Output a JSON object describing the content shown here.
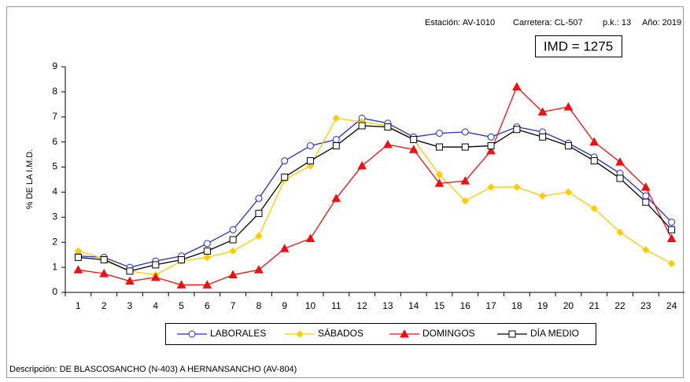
{
  "chart_data": {
    "type": "line",
    "station": "Estación: AV-1010",
    "road": "Carretera: CL-507",
    "pk": "p.k.: 13",
    "year": "Año: 2019",
    "imd": "IMD = 1275",
    "y_label": "% DE LA I.M.D.",
    "description": "Descripción: DE BLASCOSANCHO (N-403) A HERNANSANCHO (AV-804)",
    "categories": [
      1,
      2,
      3,
      4,
      5,
      6,
      7,
      8,
      9,
      10,
      11,
      12,
      13,
      14,
      15,
      16,
      17,
      18,
      19,
      20,
      21,
      22,
      23,
      24
    ],
    "ylim": [
      0,
      9
    ],
    "yticks": [
      0,
      1,
      2,
      3,
      4,
      5,
      6,
      7,
      8,
      9
    ],
    "series": [
      {
        "name": "LABORALES",
        "color": "#1f2fd0",
        "marker": "circle",
        "values": [
          1.45,
          1.4,
          1.0,
          1.25,
          1.45,
          1.95,
          2.5,
          3.75,
          5.25,
          5.85,
          6.1,
          6.95,
          6.75,
          6.2,
          6.35,
          6.4,
          6.2,
          6.6,
          6.4,
          5.95,
          5.4,
          4.75,
          3.85,
          2.8
        ]
      },
      {
        "name": "SÁBADOS",
        "color": "#ffcc00",
        "marker": "diamond",
        "values": [
          1.65,
          1.35,
          0.85,
          0.7,
          1.25,
          1.4,
          1.65,
          2.25,
          4.5,
          5.05,
          6.95,
          6.8,
          6.65,
          6.1,
          4.7,
          3.65,
          4.2,
          4.2,
          3.85,
          4.0,
          3.35,
          2.4,
          1.7,
          1.15
        ]
      },
      {
        "name": "DOMINGOS",
        "color": "#ee1111",
        "marker": "triangle",
        "values": [
          0.9,
          0.75,
          0.45,
          0.6,
          0.3,
          0.3,
          0.7,
          0.9,
          1.75,
          2.15,
          3.75,
          5.05,
          5.9,
          5.7,
          4.35,
          4.45,
          5.65,
          8.2,
          7.2,
          7.4,
          6.0,
          5.2,
          4.2,
          2.15
        ]
      },
      {
        "name": "DÍA MEDIO",
        "color": "#000000",
        "marker": "square",
        "values": [
          1.4,
          1.3,
          0.85,
          1.1,
          1.3,
          1.65,
          2.1,
          3.15,
          4.6,
          5.25,
          5.85,
          6.65,
          6.6,
          6.1,
          5.8,
          5.8,
          5.85,
          6.5,
          6.2,
          5.85,
          5.25,
          4.55,
          3.6,
          2.5
        ]
      }
    ]
  }
}
